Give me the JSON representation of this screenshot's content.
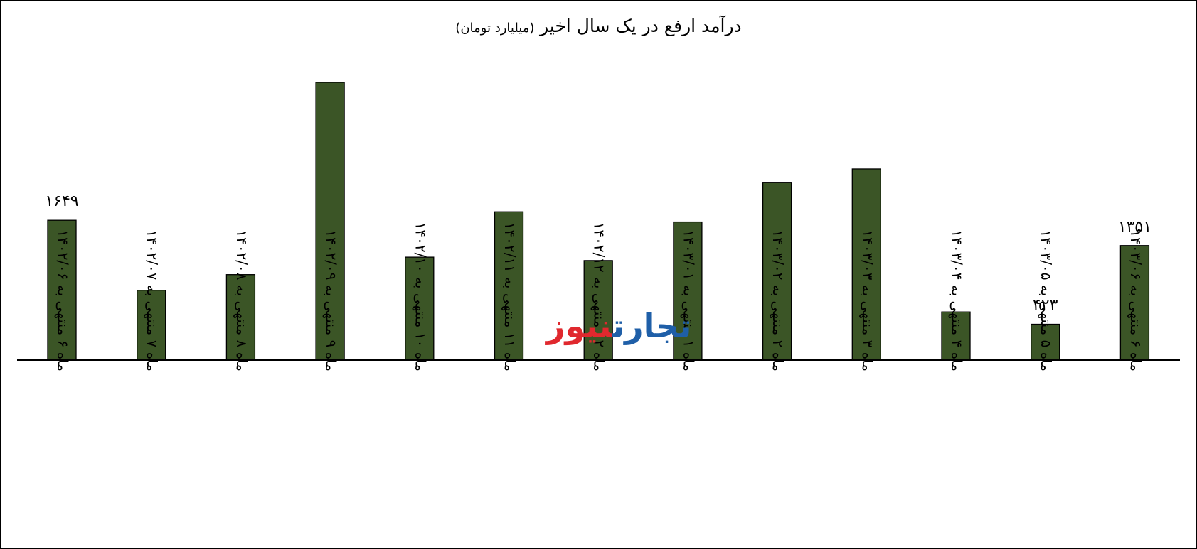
{
  "chart_data": {
    "type": "bar",
    "title": "درآمد ارفع در یک سال اخیر",
    "subtitle": "(میلیارد تومان)",
    "categories": [
      "ماه ۶ منتهی به ۱۴۰۲/۰۶",
      "ماه ۷ منتهی به ۱۴۰۲/۰۷",
      "ماه ۸ منتهی به ۱۴۰۲/۰۸",
      "ماه ۹ منتهی به ۱۴۰۲/۰۹",
      "ماه ۱۰ منتهی به ۱۴۰۲/۱۰",
      "ماه ۱۱ منتهی به ۱۴۰۲/۱۱",
      "ماه ۱۲ منتهی به ۱۴۰۲/۱۲",
      "ماه ۱ منتهی به ۱۴۰۳/۰۱",
      "ماه ۲ منتهی به ۱۴۰۳/۰۲",
      "ماه ۳ منتهی به ۱۴۰۳/۰۳",
      "ماه ۴ منتهی به ۱۴۰۳/۰۴",
      "ماه ۵ منتهی به ۱۴۰۳/۰۵",
      "ماه ۶ منتهی به ۱۴۰۳/۰۶"
    ],
    "values": [
      1649,
      824,
      1008,
      3276,
      1214,
      1749,
      1174,
      1629,
      2097,
      2254,
      568,
      423,
      1351
    ],
    "data_labels": [
      "۱۶۴۹",
      "",
      "",
      "",
      "",
      "",
      "",
      "",
      "",
      "",
      "",
      "۴۲۳",
      "۱۳۵۱"
    ],
    "ylim": [
      0,
      3620
    ],
    "bar_color": "#3b5526",
    "grid": false,
    "legend": "none"
  },
  "watermark": {
    "part1": "تجارت",
    "part2": "نیوز",
    "color1": "#1f5fa8",
    "color2": "#e0282e"
  }
}
